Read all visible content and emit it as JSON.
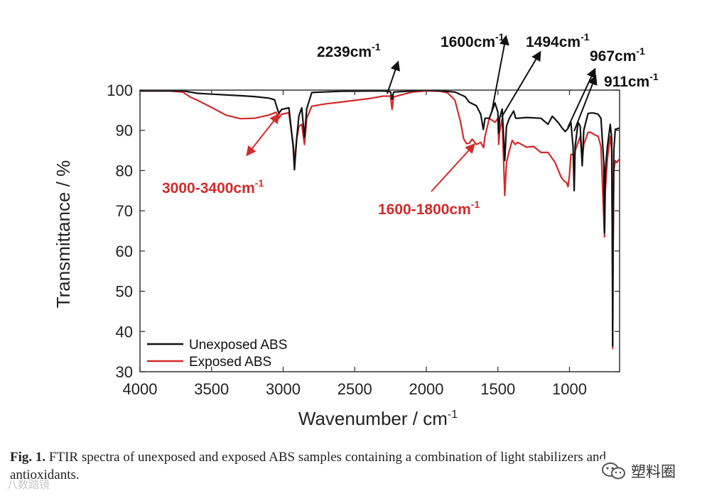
{
  "chart_data": {
    "type": "line",
    "title": "",
    "xlabel": "Wavenumber / cm",
    "xlabel_sup": "-1",
    "ylabel": "Transmittance / %",
    "xlim": [
      4000,
      650
    ],
    "ylim": [
      30,
      100
    ],
    "x_ticks": [
      "4000",
      "3500",
      "3000",
      "2500",
      "2000",
      "1500",
      "1000"
    ],
    "x_tick_values": [
      4000,
      3500,
      3000,
      2500,
      2000,
      1500,
      1000
    ],
    "y_ticks": [
      "30",
      "40",
      "50",
      "60",
      "70",
      "80",
      "90",
      "100"
    ],
    "y_tick_values": [
      30,
      40,
      50,
      60,
      70,
      80,
      90,
      100
    ],
    "series": [
      {
        "name": "Unexposed ABS",
        "color": "#111111",
        "points": [
          [
            4000,
            99.8
          ],
          [
            3800,
            99.8
          ],
          [
            3700,
            99.8
          ],
          [
            3600,
            99.2
          ],
          [
            3500,
            99.0
          ],
          [
            3300,
            98.6
          ],
          [
            3200,
            98.4
          ],
          [
            3100,
            98.0
          ],
          [
            3060,
            97.6
          ],
          [
            3030,
            94.2
          ],
          [
            3010,
            95.2
          ],
          [
            2960,
            95.6
          ],
          [
            2930,
            86
          ],
          [
            2921,
            80.2
          ],
          [
            2905,
            88
          ],
          [
            2890,
            93.6
          ],
          [
            2870,
            95.6
          ],
          [
            2851,
            88.3
          ],
          [
            2835,
            95.4
          ],
          [
            2800,
            99.4
          ],
          [
            2600,
            99.7
          ],
          [
            2300,
            99.8
          ],
          [
            2250,
            99.6
          ],
          [
            2239,
            97.7
          ],
          [
            2228,
            99.5
          ],
          [
            2000,
            100.0
          ],
          [
            1900,
            99.8
          ],
          [
            1800,
            99.5
          ],
          [
            1730,
            98.4
          ],
          [
            1700,
            97.0
          ],
          [
            1650,
            96.1
          ],
          [
            1620,
            94.0
          ],
          [
            1602,
            90.2
          ],
          [
            1590,
            93.0
          ],
          [
            1560,
            93.0
          ],
          [
            1520,
            96.8
          ],
          [
            1500,
            94.5
          ],
          [
            1494,
            89.3
          ],
          [
            1488,
            93.0
          ],
          [
            1470,
            95.3
          ],
          [
            1452,
            82.5
          ],
          [
            1440,
            91.0
          ],
          [
            1420,
            93.0
          ],
          [
            1390,
            94.8
          ],
          [
            1375,
            93.0
          ],
          [
            1360,
            93.0
          ],
          [
            1300,
            93.2
          ],
          [
            1200,
            93.0
          ],
          [
            1150,
            91.5
          ],
          [
            1120,
            93.5
          ],
          [
            1080,
            92.0
          ],
          [
            1050,
            90.5
          ],
          [
            1030,
            89.7
          ],
          [
            1010,
            90.5
          ],
          [
            990,
            92.0
          ],
          [
            975,
            86.0
          ],
          [
            967,
            75.0
          ],
          [
            960,
            86.0
          ],
          [
            940,
            92.0
          ],
          [
            925,
            91.0
          ],
          [
            911,
            81.2
          ],
          [
            900,
            90.0
          ],
          [
            870,
            94.2
          ],
          [
            850,
            94.3
          ],
          [
            830,
            94.3
          ],
          [
            800,
            94.0
          ],
          [
            780,
            93.0
          ],
          [
            760,
            82.0
          ],
          [
            755,
            64.5
          ],
          [
            750,
            80.0
          ],
          [
            735,
            86.0
          ],
          [
            715,
            91.5
          ],
          [
            705,
            88.0
          ],
          [
            700,
            56.0
          ],
          [
            698,
            36.4
          ],
          [
            696,
            55.0
          ],
          [
            690,
            85.0
          ],
          [
            680,
            90.3
          ],
          [
            670,
            90.3
          ],
          [
            660,
            90.5
          ],
          [
            650,
            90.5
          ]
        ]
      },
      {
        "name": "Exposed ABS",
        "color": "#d42a2a",
        "points": [
          [
            4000,
            99.8
          ],
          [
            3800,
            99.8
          ],
          [
            3700,
            99.5
          ],
          [
            3650,
            98.3
          ],
          [
            3600,
            97.5
          ],
          [
            3500,
            95.7
          ],
          [
            3400,
            93.8
          ],
          [
            3300,
            92.9
          ],
          [
            3200,
            93.0
          ],
          [
            3100,
            93.8
          ],
          [
            3050,
            94.5
          ],
          [
            3030,
            93.0
          ],
          [
            3010,
            94.0
          ],
          [
            2960,
            94.4
          ],
          [
            2930,
            86.5
          ],
          [
            2921,
            82.0
          ],
          [
            2905,
            88.0
          ],
          [
            2890,
            91.0
          ],
          [
            2870,
            91.5
          ],
          [
            2851,
            86.5
          ],
          [
            2835,
            93.0
          ],
          [
            2800,
            96.0
          ],
          [
            2700,
            96.6
          ],
          [
            2600,
            97.0
          ],
          [
            2400,
            97.9
          ],
          [
            2300,
            98.5
          ],
          [
            2250,
            98.5
          ],
          [
            2239,
            95.2
          ],
          [
            2228,
            98.3
          ],
          [
            2100,
            99.5
          ],
          [
            2000,
            99.8
          ],
          [
            1900,
            99.7
          ],
          [
            1850,
            99.3
          ],
          [
            1800,
            97.5
          ],
          [
            1760,
            92.0
          ],
          [
            1740,
            88.0
          ],
          [
            1720,
            86.7
          ],
          [
            1700,
            86.8
          ],
          [
            1680,
            87.8
          ],
          [
            1650,
            86.5
          ],
          [
            1620,
            87.0
          ],
          [
            1600,
            85.7
          ],
          [
            1590,
            88.5
          ],
          [
            1560,
            93.0
          ],
          [
            1520,
            92.0
          ],
          [
            1500,
            93.0
          ],
          [
            1494,
            86.5
          ],
          [
            1488,
            89.5
          ],
          [
            1470,
            93.0
          ],
          [
            1452,
            73.8
          ],
          [
            1440,
            82.0
          ],
          [
            1420,
            85.0
          ],
          [
            1400,
            87.5
          ],
          [
            1380,
            86.5
          ],
          [
            1360,
            87.0
          ],
          [
            1300,
            85.8
          ],
          [
            1250,
            86.0
          ],
          [
            1200,
            84.5
          ],
          [
            1150,
            84.5
          ],
          [
            1100,
            82.0
          ],
          [
            1060,
            78.5
          ],
          [
            1040,
            77.5
          ],
          [
            1020,
            77.0
          ],
          [
            1010,
            76.0
          ],
          [
            1000,
            79.0
          ],
          [
            990,
            84.0
          ],
          [
            975,
            84.0
          ],
          [
            967,
            83.0
          ],
          [
            960,
            85.0
          ],
          [
            940,
            87.0
          ],
          [
            925,
            88.5
          ],
          [
            911,
            82.5
          ],
          [
            900,
            86.5
          ],
          [
            870,
            89.5
          ],
          [
            850,
            89.5
          ],
          [
            830,
            89.0
          ],
          [
            800,
            88.5
          ],
          [
            780,
            86.0
          ],
          [
            760,
            68.0
          ],
          [
            755,
            63.5
          ],
          [
            750,
            75.0
          ],
          [
            735,
            83.0
          ],
          [
            715,
            88.5
          ],
          [
            705,
            85.0
          ],
          [
            700,
            60.0
          ],
          [
            698,
            35.8
          ],
          [
            696,
            58.0
          ],
          [
            690,
            80.0
          ],
          [
            680,
            82.5
          ],
          [
            670,
            82.0
          ],
          [
            660,
            82.5
          ],
          [
            650,
            82.8
          ]
        ]
      }
    ],
    "legend": [
      {
        "name": "Unexposed ABS",
        "color": "#111111"
      },
      {
        "name": "Exposed ABS",
        "color": "#d42a2a"
      }
    ],
    "annotations": [
      {
        "text": "2239cm",
        "sup": "-1",
        "color": "#111111",
        "x": 2239,
        "y": 99.5
      },
      {
        "text": "1600cm",
        "sup": "-1",
        "color": "#111111",
        "x": 1600,
        "y": 90.2
      },
      {
        "text": "1494cm",
        "sup": "-1",
        "color": "#111111",
        "x": 1494,
        "y": 89.3
      },
      {
        "text": "967cm",
        "sup": "-1",
        "color": "#111111",
        "x": 967,
        "y": 76
      },
      {
        "text": "911cm",
        "sup": "-1",
        "color": "#111111",
        "x": 911,
        "y": 81
      },
      {
        "text": "3000-3400cm",
        "sup": "-1",
        "color": "#d42a2a",
        "x": 3200,
        "y": 93
      },
      {
        "text": "1600-1800cm",
        "sup": "-1",
        "color": "#d42a2a",
        "x": 1700,
        "y": 87
      }
    ]
  },
  "caption": {
    "label": "Fig. 1.",
    "text": "FTIR spectra of unexposed and exposed ABS samples containing a combination of light stabilizers and antioxidants."
  },
  "watermarks": {
    "left": "八数踏镜",
    "right": "塑料圈"
  }
}
